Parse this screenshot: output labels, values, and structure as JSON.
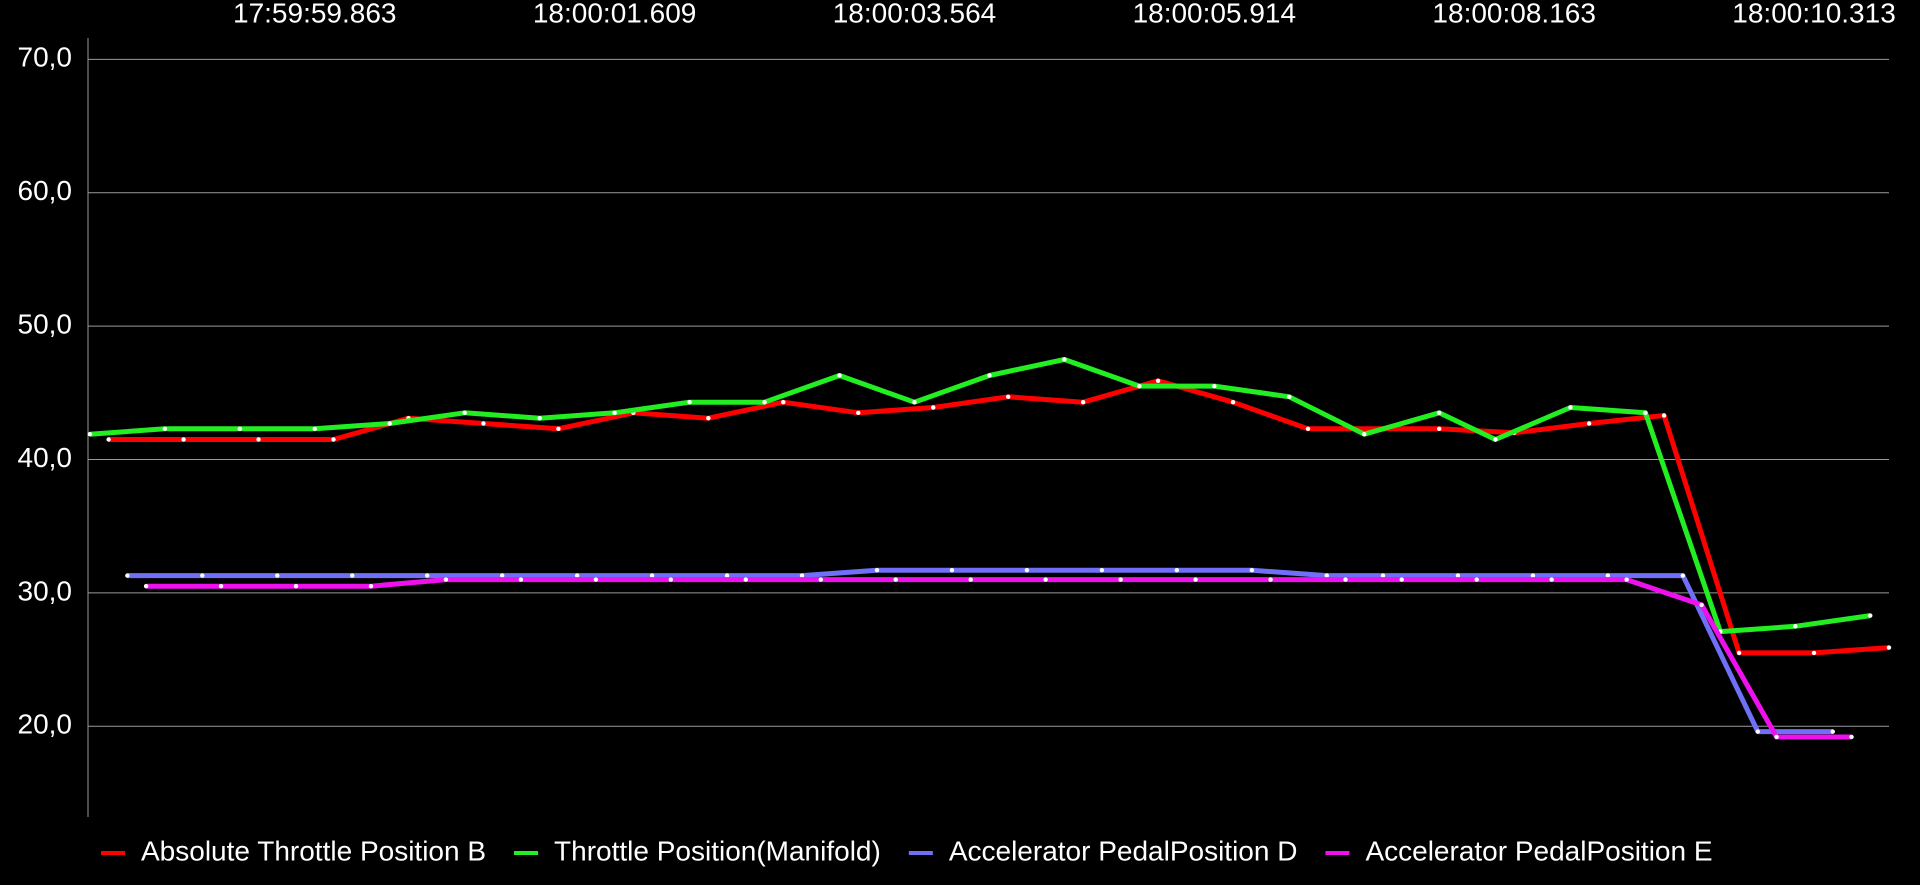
{
  "chart_data": {
    "type": "line",
    "xlim": [
      -0.1,
      96
    ],
    "ylim": [
      13.2,
      71.6
    ],
    "xticks": [
      {
        "value": 12,
        "label": "17:59:59.863"
      },
      {
        "value": 28,
        "label": "18:00:01.609"
      },
      {
        "value": 44,
        "label": "18:00:03.564"
      },
      {
        "value": 60,
        "label": "18:00:05.914"
      },
      {
        "value": 76,
        "label": "18:00:08.163"
      },
      {
        "value": 92,
        "label": "18:00:10.313"
      }
    ],
    "yticks": [
      {
        "value": 20,
        "label": "20,0"
      },
      {
        "value": 30,
        "label": "30,0"
      },
      {
        "value": 40,
        "label": "40,0"
      },
      {
        "value": 50,
        "label": "50,0"
      },
      {
        "value": 60,
        "label": "60,0"
      },
      {
        "value": 70,
        "label": "70,0"
      }
    ],
    "grid": true,
    "legend": "bottom-left",
    "series": [
      {
        "name": "Absolute Throttle Position B",
        "color": "#ff0000",
        "x": [
          1,
          5,
          9,
          13,
          17,
          21,
          25,
          29,
          33,
          37,
          41,
          45,
          49,
          53,
          57,
          61,
          65,
          69,
          72,
          76,
          80,
          84,
          88,
          92,
          96
        ],
        "values": [
          41.5,
          41.5,
          41.5,
          41.5,
          43.1,
          42.7,
          42.3,
          43.5,
          43.1,
          44.3,
          43.5,
          43.9,
          44.7,
          44.3,
          45.9,
          44.3,
          42.3,
          42.3,
          42.3,
          42.0,
          42.7,
          43.3,
          25.5,
          25.5,
          25.9
        ]
      },
      {
        "name": "Throttle Position(Manifold)",
        "color": "#22ee22",
        "x": [
          0,
          4,
          8,
          12,
          16,
          20,
          24,
          28,
          32,
          36,
          40,
          44,
          48,
          52,
          56,
          60,
          64,
          68,
          72,
          75,
          79,
          83,
          87,
          91,
          95
        ],
        "values": [
          41.9,
          42.3,
          42.3,
          42.3,
          42.7,
          43.5,
          43.1,
          43.5,
          44.3,
          44.3,
          46.3,
          44.3,
          46.3,
          47.5,
          45.5,
          45.5,
          44.7,
          41.9,
          43.5,
          41.5,
          43.9,
          43.5,
          27.1,
          27.5,
          28.3
        ]
      },
      {
        "name": "Accelerator PedalPosition D",
        "color": "#6f6ff7",
        "x": [
          2,
          6,
          10,
          14,
          18,
          22,
          26,
          30,
          34,
          38,
          42,
          46,
          50,
          54,
          58,
          62,
          66,
          69,
          73,
          77,
          81,
          85,
          89,
          93
        ],
        "values": [
          31.3,
          31.3,
          31.3,
          31.3,
          31.3,
          31.3,
          31.3,
          31.3,
          31.3,
          31.3,
          31.7,
          31.7,
          31.7,
          31.7,
          31.7,
          31.7,
          31.3,
          31.3,
          31.3,
          31.3,
          31.3,
          31.3,
          19.6,
          19.6
        ]
      },
      {
        "name": "Accelerator PedalPosition E",
        "color": "#ee11ee",
        "x": [
          3,
          7,
          11,
          15,
          19,
          23,
          27,
          31,
          35,
          39,
          43,
          47,
          51,
          55,
          59,
          63,
          67,
          70,
          74,
          78,
          82,
          86,
          90,
          94
        ],
        "values": [
          30.5,
          30.5,
          30.5,
          30.5,
          31.0,
          31.0,
          31.0,
          31.0,
          31.0,
          31.0,
          31.0,
          31.0,
          31.0,
          31.0,
          31.0,
          31.0,
          31.0,
          31.0,
          31.0,
          31.0,
          31.0,
          29.1,
          19.2,
          19.2
        ]
      }
    ]
  }
}
